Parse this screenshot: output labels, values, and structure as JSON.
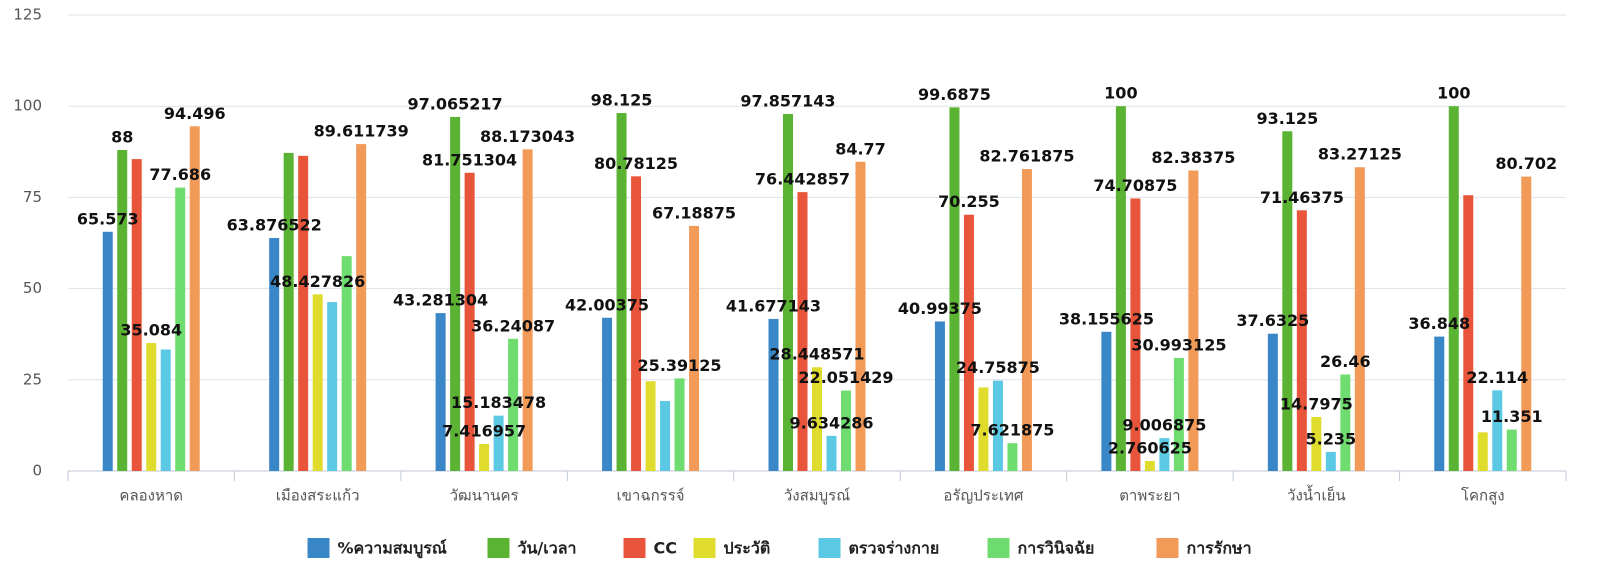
{
  "chart_data": {
    "type": "bar",
    "categories": [
      "คลองหาด",
      "เมืองสระแก้ว",
      "วัฒนานคร",
      "เขาฉกรรจ์",
      "วังสมบูรณ์",
      "อรัญประเทศ",
      "ตาพระยา",
      "วังน้ำเย็น",
      "โคกสูง"
    ],
    "series": [
      {
        "name": "%ความสมบูรณ์",
        "color": "#3a87c8",
        "values": [
          65.573,
          63.876522,
          43.281304,
          42.00375,
          41.677143,
          40.99375,
          38.155625,
          37.6325,
          36.848
        ],
        "value_labels": [
          "65.573",
          "63.876522",
          "43.281304",
          "42.00375",
          "41.677143",
          "40.99375",
          "38.155625",
          "37.6325",
          "36.848"
        ]
      },
      {
        "name": "วัน/เวลา",
        "color": "#5ab332",
        "values": [
          88,
          87.2,
          97.065217,
          98.125,
          97.857143,
          99.6875,
          100,
          93.125,
          100
        ],
        "value_labels": [
          "88",
          null,
          "97.065217",
          "98.125",
          "97.857143",
          "99.6875",
          "100",
          "93.125",
          "100"
        ]
      },
      {
        "name": "CC",
        "color": "#e8553a",
        "values": [
          85.5,
          86.4,
          81.751304,
          80.78125,
          76.442857,
          70.255,
          74.70875,
          71.46375,
          75.6
        ],
        "value_labels": [
          null,
          null,
          "81.751304",
          "80.78125",
          "76.442857",
          "70.255",
          "74.70875",
          "71.46375",
          null
        ]
      },
      {
        "name": "ประวัติ",
        "color": "#e0dc2e",
        "values": [
          35.084,
          48.427826,
          7.416957,
          24.6,
          28.448571,
          22.9,
          2.760625,
          14.7975,
          10.6
        ],
        "value_labels": [
          "35.084",
          "48.427826",
          "7.416957",
          null,
          "28.448571",
          null,
          "2.760625",
          "14.7975",
          null
        ]
      },
      {
        "name": "ตรวจร่างกาย",
        "color": "#5bc8e4",
        "values": [
          33.3,
          46.3,
          15.183478,
          19.2,
          9.634286,
          24.75875,
          9.006875,
          5.235,
          22.114
        ],
        "value_labels": [
          null,
          null,
          "15.183478",
          null,
          "9.634286",
          "24.75875",
          "9.006875",
          "5.235",
          "22.114"
        ]
      },
      {
        "name": "การวินิจฉัย",
        "color": "#6fdc6f",
        "values": [
          77.686,
          58.9,
          36.24087,
          25.39125,
          22.051429,
          7.621875,
          30.993125,
          26.46,
          11.351
        ],
        "value_labels": [
          "77.686",
          null,
          "36.24087",
          "25.39125",
          "22.051429",
          "7.621875",
          "30.993125",
          "26.46",
          "11.351"
        ]
      },
      {
        "name": "การรักษา",
        "color": "#f29a58",
        "values": [
          94.496,
          89.611739,
          88.173043,
          67.18875,
          84.77,
          82.761875,
          82.38375,
          83.27125,
          80.702
        ],
        "value_labels": [
          "94.496",
          "89.611739",
          "88.173043",
          "67.18875",
          "84.77",
          "82.761875",
          "82.38375",
          "83.27125",
          "80.702"
        ]
      }
    ],
    "ylim": [
      0,
      125
    ],
    "yticks": [
      0,
      25,
      50,
      75,
      100,
      125
    ],
    "grid": true
  }
}
